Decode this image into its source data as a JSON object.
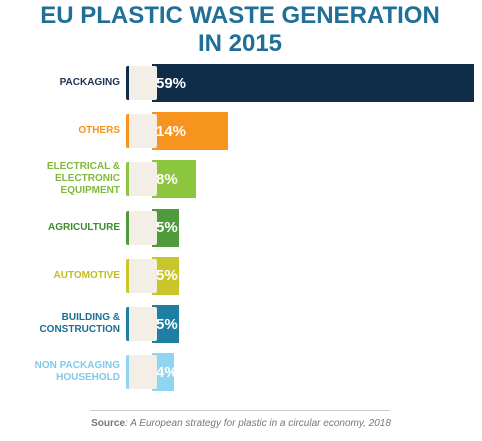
{
  "chart_data": {
    "type": "bar",
    "orientation": "horizontal",
    "title": "EU PLASTIC WASTE GENERATION IN 2015",
    "categories": [
      "PACKAGING",
      "OTHERS",
      "ELECTRICAL & ELECTRONIC EQUIPMENT",
      "AGRICULTURE",
      "AUTOMOTIVE",
      "BUILDING & CONSTRUCTION",
      "NON PACKAGING HOUSEHOLD"
    ],
    "values": [
      59,
      14,
      8,
      5,
      5,
      5,
      4
    ],
    "value_labels": [
      "59%",
      "14%",
      "8%",
      "5%",
      "5%",
      "5%",
      "4%"
    ],
    "colors": [
      "#0f2c48",
      "#f7941d",
      "#8cc63f",
      "#4f9a3a",
      "#cbc52c",
      "#1e7ea3",
      "#8fd5f2"
    ],
    "label_colors": [
      "#1a3350",
      "#f7941d",
      "#7fb83a",
      "#3f8a2e",
      "#c2bc22",
      "#1a6f92",
      "#7fcaea"
    ],
    "source": {
      "label": "Source",
      "text": ": A European strategy for plastic in a circular economy, 2018"
    }
  }
}
